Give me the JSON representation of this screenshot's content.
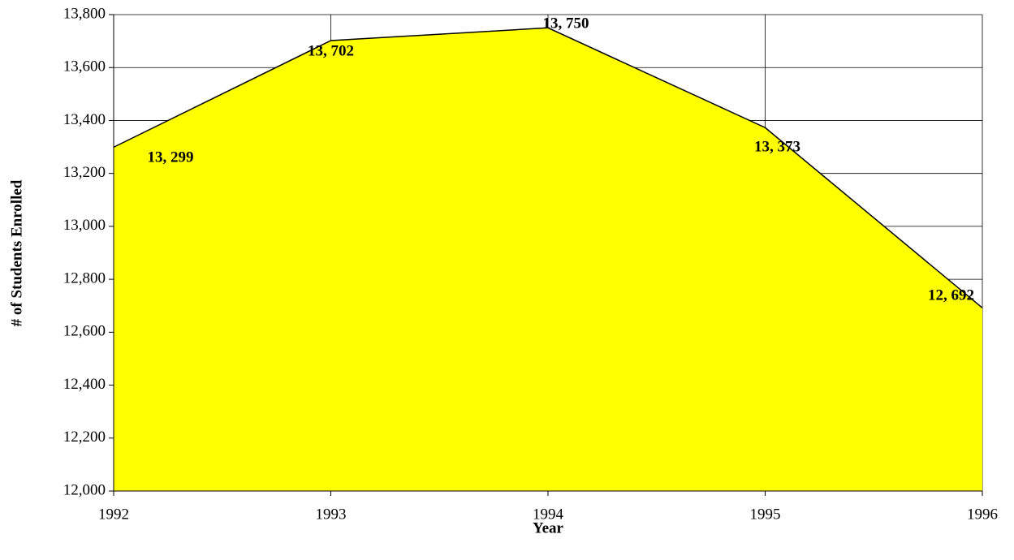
{
  "chart_data": {
    "type": "area",
    "y_label": "# of Students Enrolled",
    "x_label": "Year",
    "x": [
      1992,
      1993,
      1994,
      1995,
      1996
    ],
    "values": [
      13299,
      13702,
      13750,
      13373,
      12692
    ],
    "value_labels": [
      "13, 299",
      "13, 702",
      "13, 750",
      "13, 373",
      "12, 692"
    ],
    "color": "#ffff00",
    "line_color": "#000000",
    "xlim": [
      1992,
      1996
    ],
    "xticks": [
      1992,
      1993,
      1994,
      1995,
      1996
    ],
    "ylim": [
      12000,
      13800
    ],
    "yticks": [
      {
        "value": 12000,
        "label": "12,000"
      },
      {
        "value": 12200,
        "label": "12,200"
      },
      {
        "value": 12400,
        "label": "12,400"
      },
      {
        "value": 12600,
        "label": "12,600"
      },
      {
        "value": 12800,
        "label": "12,800"
      },
      {
        "value": 13000,
        "label": "13,000"
      },
      {
        "value": 13200,
        "label": "13,200"
      },
      {
        "value": 13400,
        "label": "13,400"
      },
      {
        "value": 13600,
        "label": "13,600"
      },
      {
        "value": 13800,
        "label": "13,800"
      }
    ],
    "grid": true
  }
}
